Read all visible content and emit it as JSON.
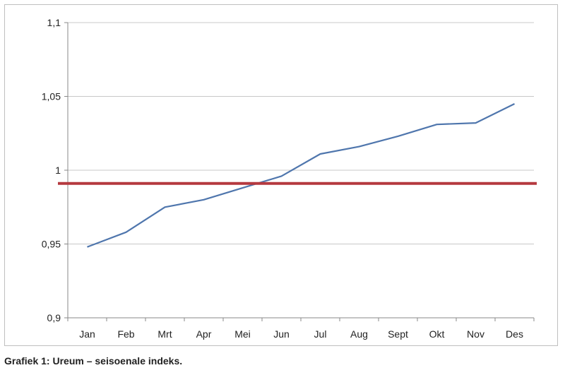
{
  "caption": "Grafiek 1: Ureum – seisoenale indeks.",
  "chart_data": {
    "type": "line",
    "categories": [
      "Jan",
      "Feb",
      "Mrt",
      "Apr",
      "Mei",
      "Jun",
      "Jul",
      "Aug",
      "Sept",
      "Okt",
      "Nov",
      "Des"
    ],
    "series": [
      {
        "values": [
          0.948,
          0.958,
          0.975,
          0.98,
          0.988,
          0.996,
          1.011,
          1.016,
          1.023,
          1.031,
          1.032,
          1.045
        ],
        "color": "#4f76ad"
      }
    ],
    "reference_line": {
      "value": 0.991,
      "color": "#b5393f"
    },
    "ylim": [
      0.9,
      1.1
    ],
    "yticks": [
      0.9,
      0.95,
      1,
      1.05,
      1.1
    ],
    "ytick_labels": [
      "0,9",
      "0,95",
      "1",
      "1,05",
      "1,1"
    ],
    "grid": true,
    "title": "",
    "xlabel": "",
    "ylabel": ""
  }
}
